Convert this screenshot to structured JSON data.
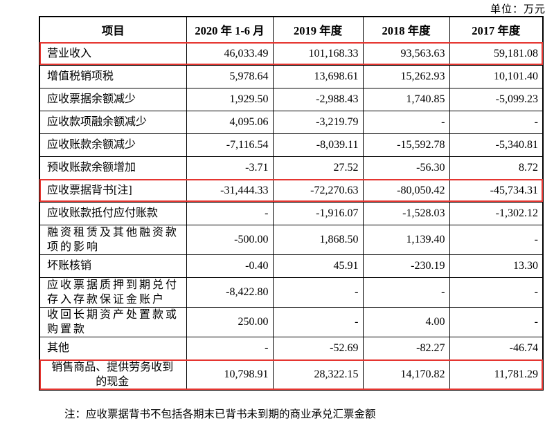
{
  "unit_label": "单位：万元",
  "table": {
    "headers": [
      "项目",
      "2020 年 1-6 月",
      "2019 年度",
      "2018 年度",
      "2017 年度"
    ],
    "rows": [
      {
        "label": "营业收入",
        "values": [
          "46,033.49",
          "101,168.33",
          "93,563.63",
          "59,181.08"
        ],
        "highlighted": true
      },
      {
        "label": "增值税销项税",
        "values": [
          "5,978.64",
          "13,698.61",
          "15,262.93",
          "10,101.40"
        ],
        "highlighted": false
      },
      {
        "label": "应收票据余额减少",
        "values": [
          "1,929.50",
          "-2,988.43",
          "1,740.85",
          "-5,099.23"
        ],
        "highlighted": false
      },
      {
        "label": "应收款项融余额减少",
        "values": [
          "4,095.06",
          "-3,219.79",
          "-",
          "-"
        ],
        "highlighted": false
      },
      {
        "label": "应收账款余额减少",
        "values": [
          "-7,116.54",
          "-8,039.11",
          "-15,592.78",
          "-5,340.81"
        ],
        "highlighted": false
      },
      {
        "label": "预收账款余额增加",
        "values": [
          "-3.71",
          "27.52",
          "-56.30",
          "8.72"
        ],
        "highlighted": false
      },
      {
        "label": "应收票据背书[注]",
        "values": [
          "-31,444.33",
          "-72,270.63",
          "-80,050.42",
          "-45,734.31"
        ],
        "highlighted": true
      },
      {
        "label": "应收账款抵付应付账款",
        "values": [
          "-",
          "-1,916.07",
          "-1,528.03",
          "-1,302.12"
        ],
        "highlighted": false
      },
      {
        "label": "融资租赁及其他融资款\n项的影响",
        "values": [
          "-500.00",
          "1,868.50",
          "1,139.40",
          "-"
        ],
        "highlighted": false,
        "spread": true
      },
      {
        "label": "坏账核销",
        "values": [
          "-0.40",
          "45.91",
          "-230.19",
          "13.30"
        ],
        "highlighted": false
      },
      {
        "label": "应收票据质押到期兑付\n存入存款保证金账户",
        "values": [
          "-8,422.80",
          "-",
          "-",
          "-"
        ],
        "highlighted": false,
        "spread": true
      },
      {
        "label": "收回长期资产处置款或\n购置款",
        "values": [
          "250.00",
          "-",
          "4.00",
          "-"
        ],
        "highlighted": false,
        "spread": true
      },
      {
        "label": "其他",
        "values": [
          "-",
          "-52.69",
          "-82.27",
          "-46.74"
        ],
        "highlighted": false
      },
      {
        "label": "销售商品、提供劳务收到\n的现金",
        "values": [
          "10,798.91",
          "28,322.15",
          "14,170.82",
          "11,781.29"
        ],
        "highlighted": true,
        "center": true
      }
    ]
  },
  "footnote": "注：应收票据背书不包括各期末已背书未到期的商业承兑汇票金额",
  "colors": {
    "highlight_border": "#e53530",
    "table_border": "#000000",
    "text": "#000000",
    "background": "#ffffff"
  }
}
